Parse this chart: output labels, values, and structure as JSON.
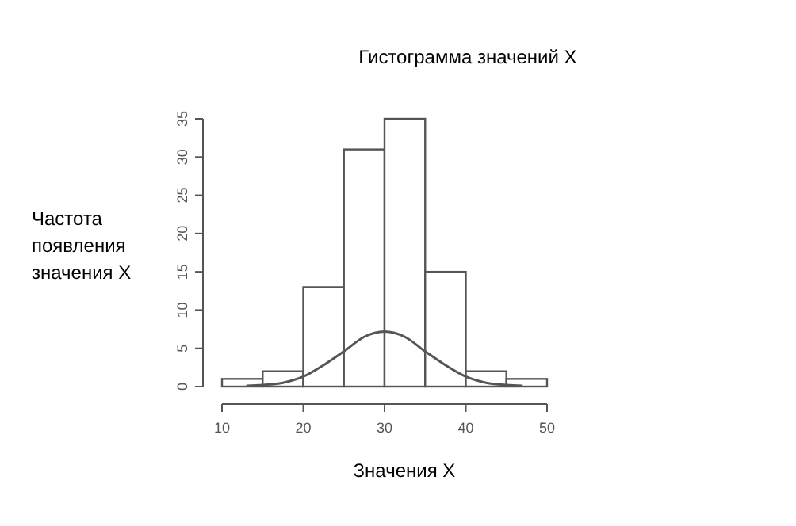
{
  "chart_data": {
    "type": "histogram",
    "title": "Гистограмма значений X",
    "xlabel": "Значения X",
    "ylabel": "Частота\nпоявления\nзначения X",
    "bins": [
      10,
      15,
      20,
      25,
      30,
      35,
      40,
      45,
      50
    ],
    "values": [
      1,
      2,
      13,
      31,
      35,
      15,
      2,
      1
    ],
    "color": "#ffffff",
    "series": [
      {
        "type": "line",
        "color": "#555555",
        "x": [
          13,
          15,
          17.5,
          20,
          22.5,
          25,
          27.5,
          30,
          32.5,
          35,
          37.5,
          40,
          42.5,
          45,
          47
        ],
        "values": [
          0.1,
          0.2,
          0.5,
          1.3,
          2.8,
          4.6,
          6.5,
          7.2,
          6.5,
          4.6,
          2.8,
          1.3,
          0.5,
          0.2,
          0.1
        ]
      }
    ],
    "xlim": [
      10,
      50
    ],
    "xticks": [
      10,
      20,
      30,
      40,
      50
    ],
    "ylim": [
      0,
      35
    ],
    "yticks": [
      0,
      5,
      10,
      15,
      20,
      25,
      30,
      35
    ]
  }
}
